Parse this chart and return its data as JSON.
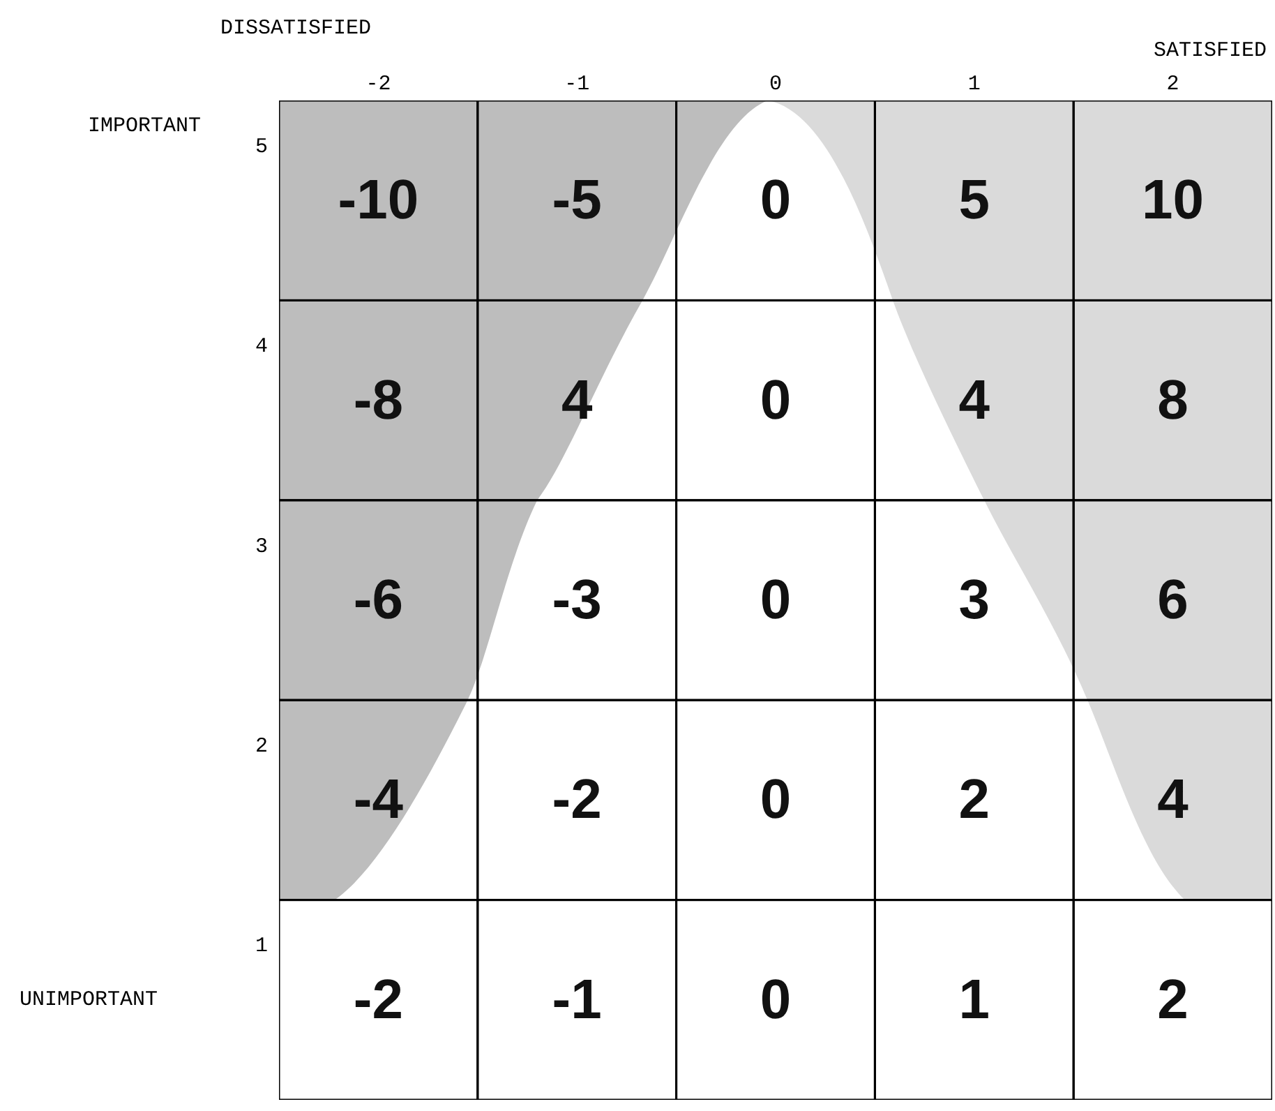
{
  "chart_data": {
    "type": "heatmap",
    "categories": [
      "-2",
      "-1",
      "0",
      "1",
      "2"
    ],
    "y_categories": [
      "5",
      "4",
      "3",
      "2",
      "1"
    ],
    "cells": [
      [
        -10,
        -5,
        0,
        5,
        10
      ],
      [
        -8,
        4,
        0,
        4,
        8
      ],
      [
        -6,
        -3,
        0,
        3,
        6
      ],
      [
        -4,
        -2,
        0,
        2,
        4
      ],
      [
        -2,
        -1,
        0,
        1,
        2
      ]
    ],
    "data_labels": true,
    "annotations": [
      "DISSATISFIED",
      "SATISFIED",
      "IMPORTANT",
      "UNIMPORTANT"
    ]
  }
}
